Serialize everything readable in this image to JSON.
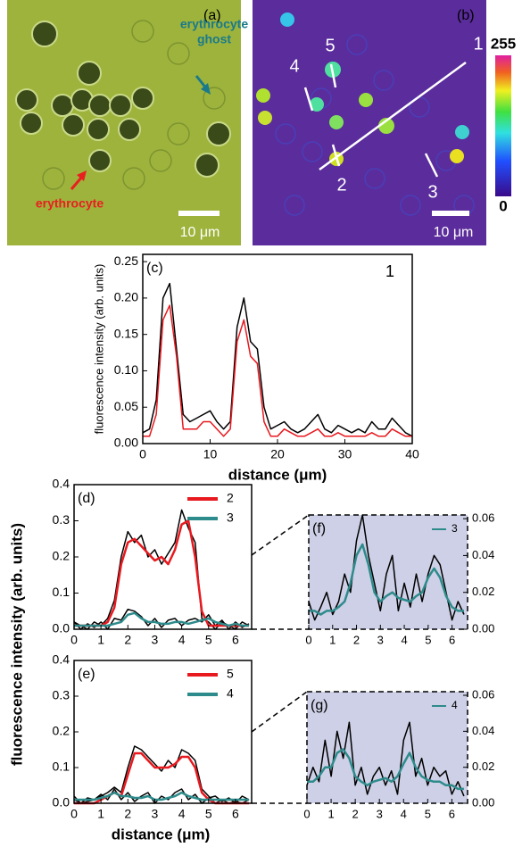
{
  "images": {
    "a": {
      "label": "(a)",
      "ghost": [
        "erythrocyte",
        "ghost"
      ],
      "cell": "erythrocyte",
      "scale": "10 μm"
    },
    "b": {
      "label": "(b)",
      "lines": [
        "1",
        "2",
        "3",
        "4",
        "5"
      ],
      "scale": "10 μm",
      "colorbar_max": "255",
      "colorbar_min": "0"
    }
  },
  "shared": {
    "ylabel": "fluorescence intensity (arb. units)",
    "xlabel": "distance (μm)"
  },
  "chart_data": [
    {
      "type": "line",
      "label": "(c)",
      "annotation": "1",
      "xlabel": "distance (μm)",
      "ylabel": "fluorescence intensity (arb. units)",
      "x": [
        0,
        1,
        2,
        3,
        4,
        5,
        6,
        7,
        8,
        9,
        10,
        11,
        12,
        13,
        14,
        15,
        16,
        17,
        18,
        19,
        20,
        21,
        22,
        23,
        24,
        25,
        26,
        27,
        28,
        29,
        30,
        31,
        32,
        33,
        34,
        35,
        36,
        37,
        38,
        39,
        40
      ],
      "series": [
        {
          "color": "#000000",
          "values": [
            0.015,
            0.02,
            0.06,
            0.2,
            0.22,
            0.13,
            0.04,
            0.03,
            0.035,
            0.04,
            0.045,
            0.03,
            0.02,
            0.03,
            0.16,
            0.2,
            0.14,
            0.13,
            0.05,
            0.02,
            0.025,
            0.03,
            0.02,
            0.015,
            0.02,
            0.03,
            0.04,
            0.02,
            0.015,
            0.025,
            0.02,
            0.015,
            0.02,
            0.015,
            0.03,
            0.02,
            0.02,
            0.035,
            0.025,
            0.015,
            0.01
          ]
        },
        {
          "color": "#e8191f",
          "values": [
            0.01,
            0.01,
            0.04,
            0.17,
            0.19,
            0.12,
            0.02,
            0.02,
            0.02,
            0.03,
            0.03,
            0.02,
            0.01,
            0.02,
            0.14,
            0.17,
            0.12,
            0.11,
            0.03,
            0.01,
            0.01,
            0.02,
            0.015,
            0.01,
            0.01,
            0.015,
            0.02,
            0.01,
            0.01,
            0.015,
            0.01,
            0.01,
            0.01,
            0.01,
            0.015,
            0.01,
            0.01,
            0.02,
            0.015,
            0.01,
            0.01
          ]
        }
      ],
      "xlim": [
        0,
        40
      ],
      "xticks": [
        0,
        10,
        20,
        30,
        40
      ],
      "ylim": [
        0,
        0.26
      ],
      "yticks": [
        {
          "value": 0,
          "label": "0.00"
        },
        {
          "value": 0.05,
          "label": "0.05"
        },
        {
          "value": 0.1,
          "label": "0.10"
        },
        {
          "value": 0.15,
          "label": "0.15"
        },
        {
          "value": 0.2,
          "label": "0.20"
        },
        {
          "value": 0.25,
          "label": "0.25"
        }
      ],
      "y_axis_side": "left",
      "frame": "solid"
    },
    {
      "type": "line",
      "label": "(d)",
      "x": [
        0,
        0.25,
        0.5,
        0.75,
        1,
        1.25,
        1.5,
        1.75,
        2,
        2.25,
        2.5,
        2.75,
        3,
        3.25,
        3.5,
        3.75,
        4,
        4.25,
        4.5,
        4.75,
        5,
        5.25,
        5.5,
        5.75,
        6,
        6.25,
        6.5
      ],
      "series": [
        {
          "color": "#000000",
          "values": [
            0.02,
            0.01,
            0.0,
            0.02,
            0.01,
            0.03,
            0.08,
            0.2,
            0.27,
            0.24,
            0.26,
            0.2,
            0.22,
            0.18,
            0.21,
            0.24,
            0.33,
            0.28,
            0.24,
            0.03,
            0.02,
            0.0,
            0.02,
            0.01,
            0.0,
            0.02,
            0.01
          ]
        },
        {
          "color": "#000000",
          "values": [
            0.02,
            0.0,
            0.015,
            0.005,
            0.02,
            0.0,
            0.03,
            0.025,
            0.055,
            0.05,
            0.035,
            0.01,
            0.03,
            0.005,
            0.025,
            0.03,
            0.01,
            0.025,
            0.03,
            0.02,
            0.04,
            0.01,
            0.025,
            0.0,
            0.02,
            0.005,
            0.015
          ]
        },
        {
          "name": "2",
          "color": "#e8191f",
          "values": [
            0.01,
            0.01,
            0.01,
            0.01,
            0.01,
            0.02,
            0.06,
            0.18,
            0.24,
            0.25,
            0.23,
            0.21,
            0.19,
            0.2,
            0.18,
            0.22,
            0.29,
            0.3,
            0.2,
            0.05,
            0.01,
            0.01,
            0.01,
            0.01,
            0.01,
            0.01,
            0.01
          ]
        },
        {
          "name": "3",
          "color": "#2e8b8b",
          "values": [
            0.01,
            0.01,
            0.01,
            0.01,
            0.01,
            0.01,
            0.015,
            0.02,
            0.04,
            0.045,
            0.03,
            0.02,
            0.02,
            0.015,
            0.015,
            0.02,
            0.02,
            0.015,
            0.02,
            0.025,
            0.03,
            0.02,
            0.015,
            0.01,
            0.015,
            0.01,
            0.01
          ]
        }
      ],
      "xlim": [
        0,
        6.6
      ],
      "xticks": [
        0,
        1,
        2,
        3,
        4,
        5,
        6
      ],
      "ylim": [
        0,
        0.4
      ],
      "yticks": [
        {
          "value": 0,
          "label": "0.0"
        },
        0.1,
        0.2,
        0.3,
        0.4
      ],
      "y_axis_side": "left",
      "frame": "solid",
      "legend": "upper right"
    },
    {
      "type": "line",
      "label": "(e)",
      "x": [
        0,
        0.25,
        0.5,
        0.75,
        1,
        1.25,
        1.5,
        1.75,
        2,
        2.25,
        2.5,
        2.75,
        3,
        3.25,
        3.5,
        3.75,
        4,
        4.25,
        4.5,
        4.75,
        5,
        5.25,
        5.5,
        5.75,
        6,
        6.25,
        6.5
      ],
      "series": [
        {
          "color": "#000000",
          "values": [
            0.01,
            0,
            0.005,
            0.01,
            0.02,
            0.03,
            0.045,
            0.03,
            0.1,
            0.16,
            0.15,
            0.13,
            0.11,
            0.09,
            0.12,
            0.1,
            0.15,
            0.14,
            0.12,
            0.04,
            0.02,
            0,
            0.01,
            0,
            0.005,
            0,
            0.01
          ]
        },
        {
          "color": "#000000",
          "values": [
            0.02,
            0.0,
            0.015,
            0.01,
            0.025,
            0.01,
            0.04,
            0.01,
            0.03,
            0.005,
            0.02,
            0.03,
            0.0,
            0.02,
            0.01,
            0.03,
            0.04,
            0.01,
            0.025,
            0.0,
            0.015,
            0.02,
            0.005,
            0.015,
            0,
            0.02,
            0.01
          ]
        },
        {
          "name": "5",
          "color": "#e8191f",
          "values": [
            0,
            0,
            0,
            0,
            0.01,
            0.02,
            0.03,
            0.02,
            0.08,
            0.14,
            0.14,
            0.12,
            0.1,
            0.1,
            0.1,
            0.11,
            0.13,
            0.13,
            0.1,
            0.03,
            0.01,
            0,
            0,
            0,
            0,
            0,
            0
          ]
        },
        {
          "name": "4",
          "color": "#2e8b8b",
          "values": [
            0.01,
            0.01,
            0.01,
            0.01,
            0.015,
            0.02,
            0.03,
            0.02,
            0.02,
            0.015,
            0.015,
            0.02,
            0.01,
            0.01,
            0.015,
            0.02,
            0.03,
            0.02,
            0.015,
            0.01,
            0.01,
            0.01,
            0.01,
            0.01,
            0.01,
            0.01,
            0.01
          ]
        }
      ],
      "xlim": [
        0,
        6.6
      ],
      "xticks": [
        0,
        1,
        2,
        3,
        4,
        5,
        6
      ],
      "ylim": [
        0,
        0.4
      ],
      "yticks": [
        {
          "value": 0,
          "label": "0.0"
        },
        0.1,
        0.2,
        0.3,
        0.4
      ],
      "y_axis_side": "left",
      "frame": "solid",
      "legend": "upper right"
    },
    {
      "type": "line",
      "label": "(f)",
      "x": [
        0,
        0.25,
        0.5,
        0.75,
        1,
        1.25,
        1.5,
        1.75,
        2,
        2.25,
        2.5,
        2.75,
        3,
        3.25,
        3.5,
        3.75,
        4,
        4.25,
        4.5,
        4.75,
        5,
        5.25,
        5.5,
        5.75,
        6,
        6.25,
        6.5
      ],
      "series": [
        {
          "color": "#000000",
          "values": [
            0.015,
            0.005,
            0.012,
            0.02,
            0.008,
            0.015,
            0.03,
            0.02,
            0.048,
            0.062,
            0.04,
            0.025,
            0.01,
            0.03,
            0.04,
            0.01,
            0.025,
            0.012,
            0.03,
            0.015,
            0.03,
            0.04,
            0.035,
            0.02,
            0.005,
            0.015,
            0.008
          ]
        },
        {
          "name": "3",
          "color": "#2e8b8b",
          "values": [
            0.01,
            0.01,
            0.008,
            0.01,
            0.01,
            0.012,
            0.015,
            0.025,
            0.04,
            0.046,
            0.035,
            0.02,
            0.015,
            0.018,
            0.02,
            0.017,
            0.016,
            0.015,
            0.018,
            0.02,
            0.028,
            0.033,
            0.028,
            0.018,
            0.012,
            0.01,
            0.01
          ]
        }
      ],
      "xlim": [
        0,
        6.65
      ],
      "xticks": [
        0,
        1,
        2,
        3,
        4,
        5,
        6
      ],
      "ylim": [
        0,
        0.062
      ],
      "yticks": [
        {
          "value": 0,
          "label": "0.00"
        },
        {
          "value": 0.02,
          "label": "0.02"
        },
        {
          "value": 0.04,
          "label": "0.04"
        },
        {
          "value": 0.06,
          "label": "0.06"
        }
      ],
      "y_axis_side": "right",
      "frame": "dashed",
      "background": "#cdd0e6",
      "legend": "upper right"
    },
    {
      "type": "line",
      "label": "(g)",
      "x": [
        0,
        0.25,
        0.5,
        0.75,
        1,
        1.25,
        1.5,
        1.75,
        2,
        2.25,
        2.5,
        2.75,
        3,
        3.25,
        3.5,
        3.75,
        4,
        4.25,
        4.5,
        4.75,
        5,
        5.25,
        5.5,
        5.75,
        6,
        6.25,
        6.5
      ],
      "series": [
        {
          "color": "#000000",
          "values": [
            0.01,
            0.02,
            0.012,
            0.035,
            0.015,
            0.04,
            0.025,
            0.045,
            0.01,
            0.02,
            0.005,
            0.015,
            0.02,
            0.01,
            0.018,
            0.005,
            0.035,
            0.045,
            0.015,
            0.025,
            0.01,
            0.02,
            0.015,
            0.018,
            0.005,
            0.012,
            0.004
          ]
        },
        {
          "name": "4",
          "color": "#2e8b8b",
          "values": [
            0.012,
            0.012,
            0.015,
            0.02,
            0.02,
            0.028,
            0.03,
            0.025,
            0.015,
            0.012,
            0.01,
            0.012,
            0.013,
            0.014,
            0.012,
            0.015,
            0.022,
            0.028,
            0.02,
            0.015,
            0.013,
            0.012,
            0.012,
            0.01,
            0.01,
            0.008,
            0.008
          ]
        }
      ],
      "xlim": [
        0,
        6.65
      ],
      "xticks": [
        0,
        1,
        2,
        3,
        4,
        5,
        6
      ],
      "ylim": [
        0,
        0.062
      ],
      "yticks": [
        {
          "value": 0,
          "label": "0.00"
        },
        {
          "value": 0.02,
          "label": "0.02"
        },
        {
          "value": 0.04,
          "label": "0.04"
        },
        {
          "value": 0.06,
          "label": "0.06"
        }
      ],
      "y_axis_side": "right",
      "frame": "dashed",
      "background": "#cdd0e6",
      "legend": "upper right"
    }
  ]
}
